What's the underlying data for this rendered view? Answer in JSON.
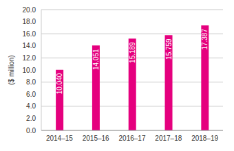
{
  "chart_data": {
    "type": "bar",
    "y_label": "($ million)",
    "categories": [
      "2014–15",
      "2015–16",
      "2016–17",
      "2017–18",
      "2018–19"
    ],
    "values": [
      10.04,
      14.051,
      15.189,
      15.759,
      17.387
    ],
    "value_labels": [
      "10.040",
      "14.051",
      "15.189",
      "15.759",
      "17.387"
    ],
    "data_labels": true,
    "color": "#e5007e",
    "ylim": [
      0,
      20
    ],
    "yticks": [
      {
        "value": 0,
        "label": "0.0"
      },
      {
        "value": 2,
        "label": "2.0"
      },
      {
        "value": 4,
        "label": "4.0"
      },
      {
        "value": 6,
        "label": "6.0"
      },
      {
        "value": 8,
        "label": "8.0"
      },
      {
        "value": 10,
        "label": "10.0"
      },
      {
        "value": 12,
        "label": "12.0"
      },
      {
        "value": 14,
        "label": "14.0"
      },
      {
        "value": 16,
        "label": "16.0"
      },
      {
        "value": 18,
        "label": "18.0"
      },
      {
        "value": 20,
        "label": "20.0"
      }
    ],
    "grid": true
  }
}
